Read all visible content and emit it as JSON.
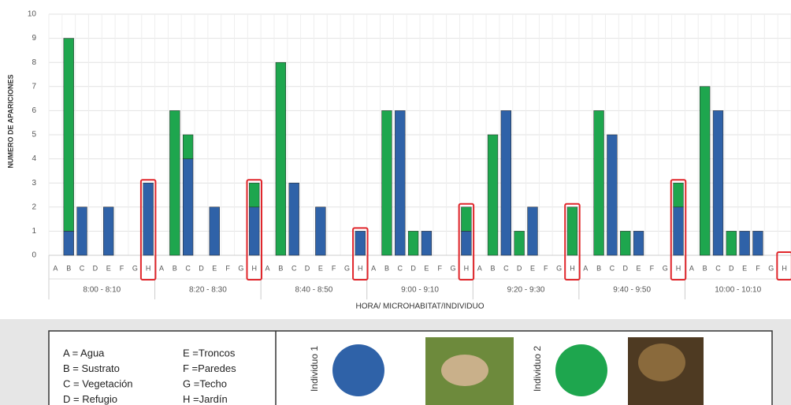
{
  "chart_data": {
    "type": "stacked-bar",
    "ylabel": "NUMERO DE APARICIONES",
    "xlabel": "HORA/ MICROHABITAT/INDIVIDUO",
    "categories": [
      "A",
      "B",
      "C",
      "D",
      "E",
      "F",
      "G",
      "H",
      "A",
      "B",
      "C",
      "D",
      "E",
      "F",
      "G",
      "H",
      "A",
      "B",
      "C",
      "D",
      "E",
      "F",
      "G",
      "H",
      "A",
      "B",
      "C",
      "D",
      "E",
      "F",
      "G",
      "H",
      "A",
      "B",
      "C",
      "D",
      "E",
      "F",
      "G",
      "H",
      "A",
      "B",
      "C",
      "D",
      "E",
      "F",
      "G",
      "H",
      "A",
      "B",
      "C",
      "D",
      "E",
      "F",
      "G",
      "H"
    ],
    "groups": [
      "8:00 - 8:10",
      "8:20 - 8:30",
      "8:40 - 8:50",
      "9:00 - 9:10",
      "9:20 - 9:30",
      "9:40 - 9:50",
      "10:00 - 10:10"
    ],
    "series": [
      {
        "name": "Individuo 1",
        "color": "#2f62a8",
        "values": [
          0,
          1,
          2,
          0,
          2,
          0,
          0,
          3,
          0,
          0,
          4,
          0,
          2,
          0,
          0,
          2,
          0,
          0,
          3,
          0,
          2,
          0,
          0,
          1,
          0,
          0,
          6,
          0,
          1,
          0,
          0,
          1,
          0,
          0,
          6,
          0,
          2,
          0,
          0,
          0,
          0,
          0,
          5,
          0,
          1,
          0,
          0,
          2,
          0,
          0,
          6,
          0,
          1,
          1,
          0,
          0
        ]
      },
      {
        "name": "Individuo 2",
        "color": "#1ea64e",
        "values": [
          0,
          8,
          0,
          0,
          0,
          0,
          0,
          0,
          0,
          6,
          1,
          0,
          0,
          0,
          0,
          1,
          0,
          8,
          0,
          0,
          0,
          0,
          0,
          0,
          0,
          6,
          0,
          1,
          0,
          0,
          0,
          1,
          0,
          5,
          0,
          1,
          0,
          0,
          0,
          2,
          0,
          6,
          0,
          1,
          0,
          0,
          0,
          1,
          0,
          7,
          0,
          1,
          0,
          0,
          0,
          0
        ]
      }
    ],
    "highlight_indices": [
      7,
      15,
      23,
      31,
      39,
      47,
      55
    ],
    "highlight_color": "#e0262b",
    "ylim": [
      0,
      10
    ],
    "yticks": [
      0,
      1,
      2,
      3,
      4,
      5,
      6,
      7,
      8,
      9,
      10
    ],
    "grid": true,
    "legend_key": [
      "A = Agua",
      "B = Sustrato",
      "C = Vegetación",
      "D = Refugio",
      "E =Troncos",
      "F =Paredes",
      "G =Techo",
      "H =Jardín"
    ]
  }
}
